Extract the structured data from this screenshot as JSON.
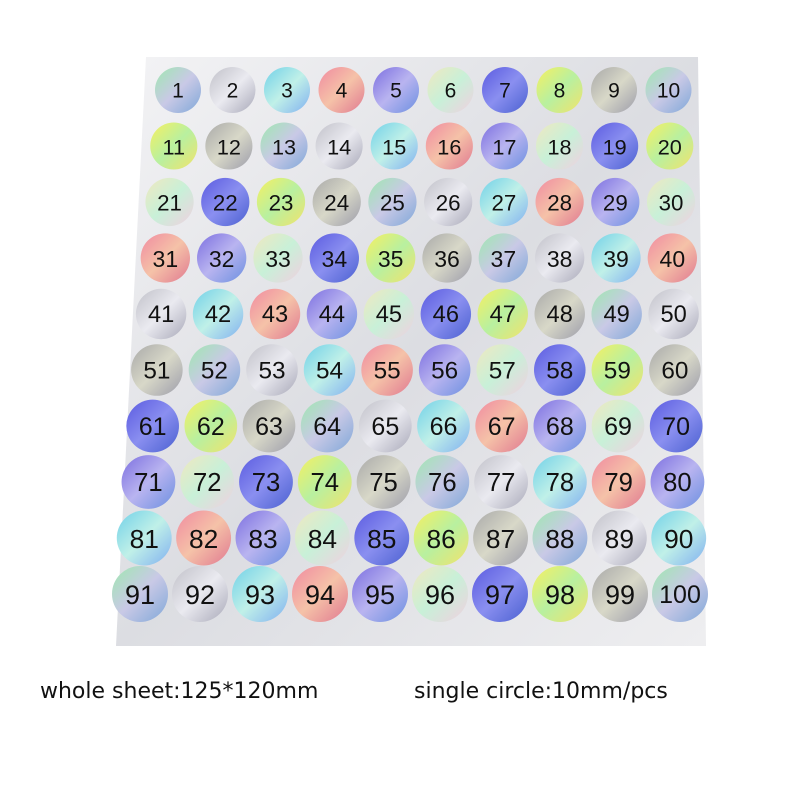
{
  "stickers": [
    "1",
    "2",
    "3",
    "4",
    "5",
    "6",
    "7",
    "8",
    "9",
    "10",
    "11",
    "12",
    "13",
    "14",
    "15",
    "16",
    "17",
    "18",
    "19",
    "20",
    "21",
    "22",
    "23",
    "24",
    "25",
    "26",
    "27",
    "28",
    "29",
    "30",
    "31",
    "32",
    "33",
    "34",
    "35",
    "36",
    "37",
    "38",
    "39",
    "40",
    "41",
    "42",
    "43",
    "44",
    "45",
    "46",
    "47",
    "48",
    "49",
    "50",
    "51",
    "52",
    "53",
    "54",
    "55",
    "56",
    "57",
    "58",
    "59",
    "60",
    "61",
    "62",
    "63",
    "64",
    "65",
    "66",
    "67",
    "68",
    "69",
    "70",
    "71",
    "72",
    "73",
    "74",
    "75",
    "76",
    "77",
    "78",
    "79",
    "80",
    "81",
    "82",
    "83",
    "84",
    "85",
    "86",
    "87",
    "88",
    "89",
    "90",
    "91",
    "92",
    "93",
    "94",
    "95",
    "96",
    "97",
    "98",
    "99",
    "100"
  ],
  "caption": {
    "left": "whole sheet:125*120mm",
    "right": "single circle:10mm/pcs"
  }
}
